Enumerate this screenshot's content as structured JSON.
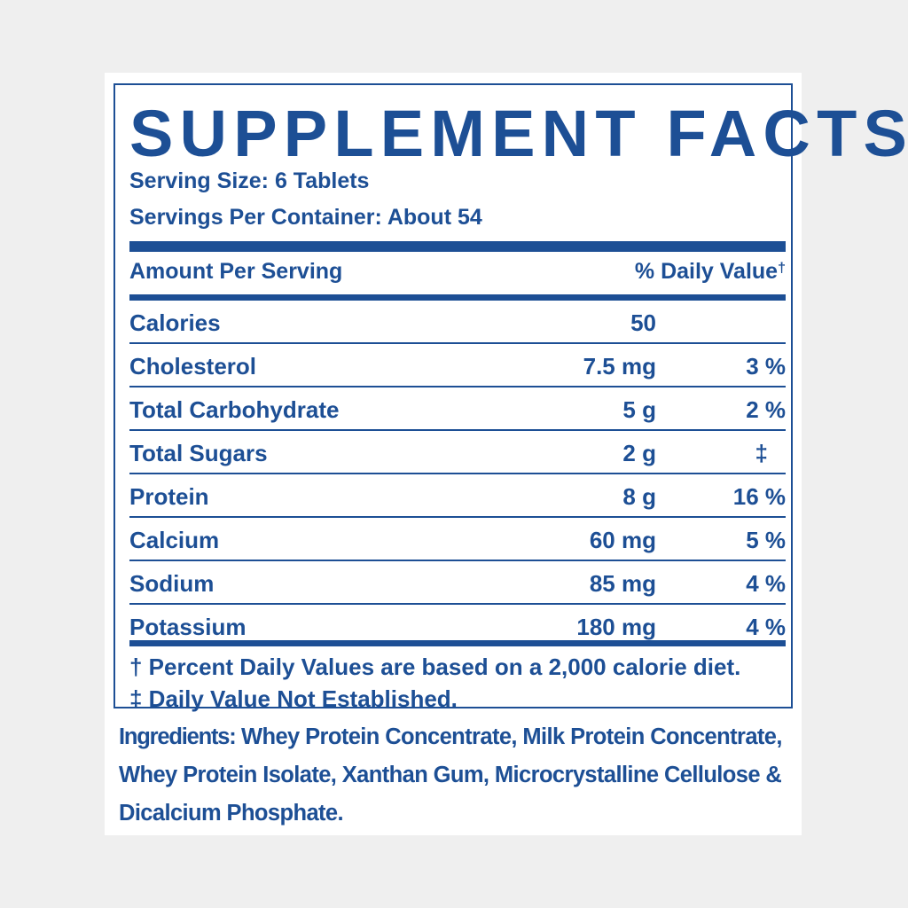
{
  "title": "SUPPLEMENT FACTS",
  "serving_size": "Serving Size: 6 Tablets",
  "servings_per_container": "Servings Per Container: About 54",
  "header": {
    "amount_per_serving": "Amount Per Serving",
    "daily_value": "% Daily Value",
    "daily_value_mark": "†"
  },
  "nutrients": [
    {
      "name": "Calories",
      "amount": "50",
      "dv": ""
    },
    {
      "name": "Cholesterol",
      "amount": "7.5 mg",
      "dv": "3 %"
    },
    {
      "name": "Total Carbohydrate",
      "amount": "5 g",
      "dv": "2 %"
    },
    {
      "name": "Total Sugars",
      "amount": "2 g",
      "dv": "‡"
    },
    {
      "name": "Protein",
      "amount": "8 g",
      "dv": "16 %"
    },
    {
      "name": "Calcium",
      "amount": "60 mg",
      "dv": "5 %"
    },
    {
      "name": "Sodium",
      "amount": "85 mg",
      "dv": "4 %"
    },
    {
      "name": "Potassium",
      "amount": "180 mg",
      "dv": "4 %"
    }
  ],
  "footnotes": {
    "dagger": "† Percent Daily Values are based on a 2,000 calorie diet.",
    "double_dagger": "‡ Daily Value Not Established."
  },
  "ingredients": {
    "label": "Ingredients:",
    "text": " Whey Protein Concentrate, Milk Protein Concentrate, Whey Protein Isolate, Xanthan Gum, Microcrystalline Cellulose & Dicalcium Phosphate."
  },
  "colors": {
    "text": "#1d4f95",
    "background": "#efefef",
    "card": "#ffffff"
  }
}
